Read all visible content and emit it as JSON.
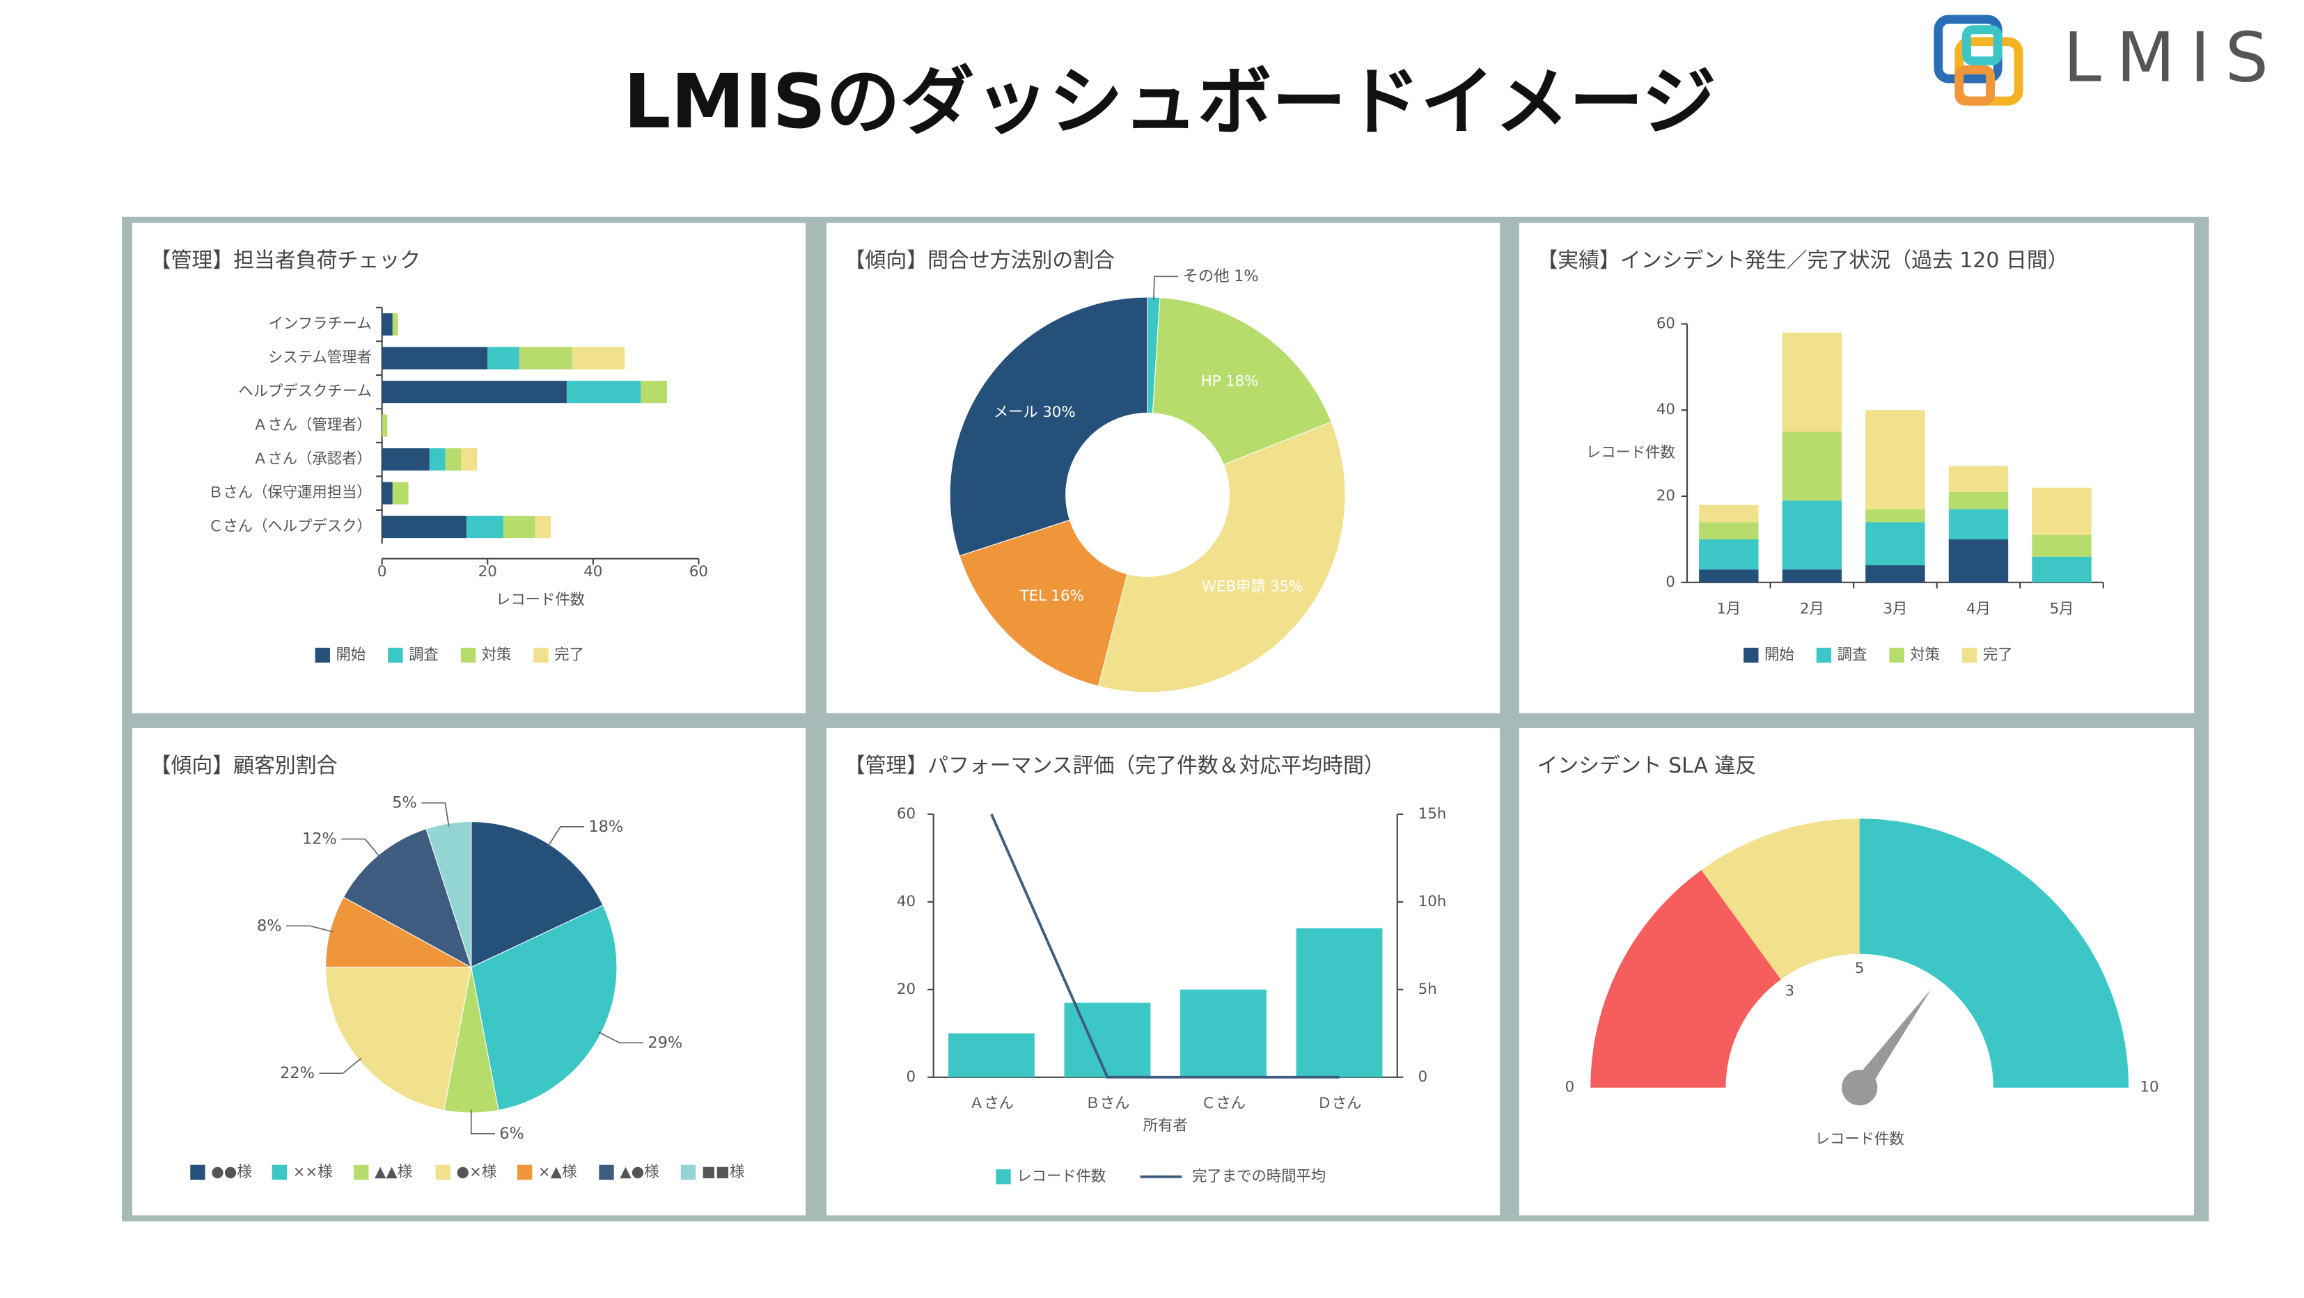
{
  "header": {
    "title": "LMISのダッシュボードイメージ",
    "logo": "LMIS"
  },
  "chart_data": [
    {
      "type": "bar",
      "horizontal": true,
      "stacked": true,
      "title": "【管理】担当者負荷チェック",
      "categories": [
        "インフラチーム",
        "システム管理者",
        "ヘルプデスクチーム",
        "Ａさん（管理者）",
        "Ａさん（承認者）",
        "Ｂさん（保守運用担当）",
        "Ｃさん（ヘルプデスク）"
      ],
      "series": [
        {
          "name": "開始",
          "color": "#24507a",
          "values": [
            2,
            20,
            35,
            0,
            9,
            2,
            16
          ]
        },
        {
          "name": "調査",
          "color": "#3cc6c6",
          "values": [
            0,
            6,
            14,
            0,
            3,
            0,
            7
          ]
        },
        {
          "name": "対策",
          "color": "#b6dd6c",
          "values": [
            1,
            10,
            5,
            1,
            3,
            3,
            6
          ]
        },
        {
          "name": "完了",
          "color": "#f1e08c",
          "values": [
            0,
            10,
            0,
            0,
            3,
            0,
            3
          ]
        }
      ],
      "xlim": [
        0,
        60
      ],
      "xticks": [
        0,
        20,
        40,
        60
      ],
      "xlabel": "レコード件数"
    },
    {
      "type": "donut",
      "title": "【傾向】問合せ方法別の割合",
      "categories": [
        "その他",
        "HP",
        "WEB申請",
        "TEL",
        "メール"
      ],
      "values": [
        1,
        18,
        35,
        16,
        30
      ],
      "value_labels": [
        "1%",
        "18%",
        "35%",
        "16%",
        "30%"
      ],
      "colors": [
        "#3cc6c6",
        "#b6dd6c",
        "#f1e08c",
        "#f0963a",
        "#24507a"
      ]
    },
    {
      "type": "bar",
      "stacked": true,
      "title": "【実績】インシデント発生／完了状況（過去 120 日間）",
      "categories": [
        "1月",
        "2月",
        "3月",
        "4月",
        "5月"
      ],
      "series": [
        {
          "name": "開始",
          "color": "#24507a",
          "values": [
            3,
            3,
            4,
            10,
            0
          ]
        },
        {
          "name": "調査",
          "color": "#3cc6c6",
          "values": [
            7,
            16,
            10,
            7,
            6
          ]
        },
        {
          "name": "対策",
          "color": "#b6dd6c",
          "values": [
            4,
            16,
            3,
            4,
            5
          ]
        },
        {
          "name": "完了",
          "color": "#f1e08c",
          "values": [
            4,
            23,
            23,
            6,
            11
          ]
        }
      ],
      "ylim": [
        0,
        60
      ],
      "yticks": [
        0,
        20,
        40,
        60
      ],
      "ylabel": "レコード件数"
    },
    {
      "type": "pie",
      "title": "【傾向】顧客別割合",
      "categories": [
        "●●様",
        "××様",
        "▲▲様",
        "●×様",
        "×▲様",
        "▲●様",
        "■■様"
      ],
      "values": [
        18,
        29,
        6,
        22,
        8,
        12,
        5
      ],
      "value_labels": [
        "18%",
        "29%",
        "6%",
        "22%",
        "8%",
        "12%",
        "5%"
      ],
      "colors": [
        "#24507a",
        "#3cc6c6",
        "#b6dd6c",
        "#f1e08c",
        "#f0963a",
        "#3d5c80",
        "#92d5d3"
      ]
    },
    {
      "type": "combo",
      "title": "【管理】パフォーマンス評価（完了件数＆対応平均時間）",
      "categories": [
        "Ａさん",
        "Ｂさん",
        "Ｃさん",
        "Ｄさん"
      ],
      "xlabel": "所有者",
      "series": [
        {
          "name": "レコード件数",
          "type": "bar",
          "color": "#3cc6c6",
          "values": [
            10,
            17,
            20,
            34
          ]
        },
        {
          "name": "完了までの時間平均",
          "type": "line",
          "axis": "y2",
          "color": "#3d5c80",
          "values": [
            15,
            0,
            0,
            0
          ]
        }
      ],
      "ylim": [
        0,
        60
      ],
      "yticks": [
        0,
        20,
        40,
        60
      ],
      "y2lim": [
        0,
        15
      ],
      "y2ticks": [
        0,
        {
          "value": 5,
          "label": "5h"
        },
        {
          "value": 10,
          "label": "10h"
        },
        {
          "value": 15,
          "label": "15h"
        }
      ]
    },
    {
      "type": "gauge",
      "title": "インシデント SLA 違反",
      "ylim": [
        0,
        10
      ],
      "yticks": [
        0,
        3,
        5,
        10
      ],
      "band_colors": [
        "#f65d5d",
        "#f1e08c",
        "#3cc6c6"
      ],
      "value": 7,
      "label": "レコード件数",
      "needle_color": "#999999"
    }
  ]
}
